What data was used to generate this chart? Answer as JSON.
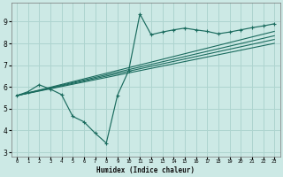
{
  "xlabel": "Humidex (Indice chaleur)",
  "bg_color": "#cce9e5",
  "grid_color": "#aed4cf",
  "line_color": "#1a6b5e",
  "xlim": [
    -0.5,
    23.5
  ],
  "ylim": [
    2.8,
    9.85
  ],
  "xticks": [
    0,
    1,
    2,
    3,
    4,
    5,
    6,
    7,
    8,
    9,
    10,
    11,
    12,
    13,
    14,
    15,
    16,
    17,
    18,
    19,
    20,
    21,
    22,
    23
  ],
  "yticks": [
    3,
    4,
    5,
    6,
    7,
    8,
    9
  ],
  "curve_x": [
    0,
    1,
    2,
    3,
    4,
    5,
    6,
    7,
    8,
    9,
    10,
    11,
    12,
    13,
    14,
    15,
    16,
    17,
    18,
    19,
    20,
    21,
    22,
    23
  ],
  "curve_y": [
    5.6,
    5.78,
    6.1,
    5.9,
    5.65,
    4.65,
    4.4,
    3.88,
    3.42,
    5.62,
    6.75,
    9.35,
    8.4,
    8.52,
    8.62,
    8.7,
    8.62,
    8.55,
    8.44,
    8.52,
    8.62,
    8.72,
    8.8,
    8.9
  ],
  "reg_lines": [
    {
      "x": [
        0,
        23
      ],
      "y": [
        5.6,
        8.55
      ]
    },
    {
      "x": [
        0,
        23
      ],
      "y": [
        5.6,
        8.35
      ]
    },
    {
      "x": [
        0,
        23
      ],
      "y": [
        5.6,
        8.18
      ]
    },
    {
      "x": [
        0,
        23
      ],
      "y": [
        5.6,
        8.0
      ]
    }
  ]
}
